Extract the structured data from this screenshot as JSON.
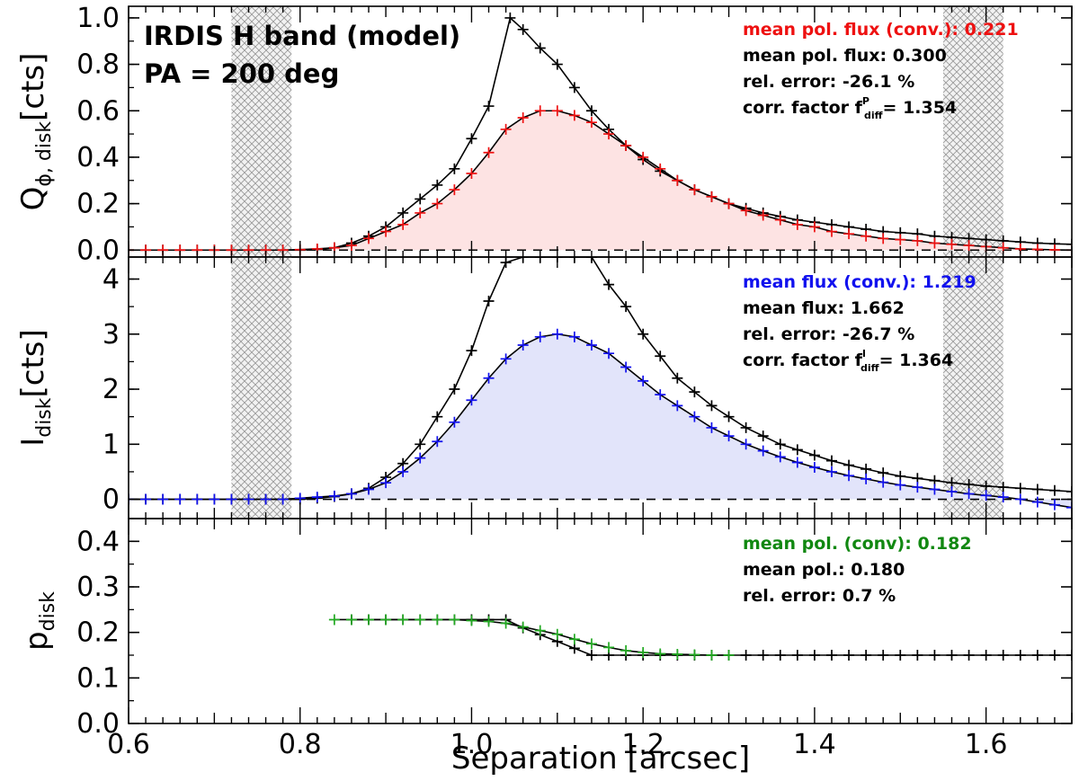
{
  "chart_data": [
    {
      "type": "line",
      "panel": "top",
      "ylabel_main": "Q",
      "ylabel_sub": "ϕ, disk",
      "ylabel_unit": "[cts]",
      "xlim": [
        0.6,
        1.7
      ],
      "ylim": [
        -0.03,
        1.05
      ],
      "yticks": [
        0.0,
        0.2,
        0.4,
        0.6,
        0.8,
        1.0
      ],
      "ytick_labels": [
        "0.0",
        "0.2",
        "0.4",
        "0.6",
        "0.8",
        "1.0"
      ],
      "zero_line": "dashed",
      "masked_regions": [
        [
          0.72,
          0.79
        ],
        [
          1.55,
          1.62
        ]
      ],
      "annotation_title": [
        "IRDIS H band (model)",
        "PA = 200 deg"
      ],
      "stats": [
        {
          "text": "mean pol. flux (conv.): 0.221",
          "color": "#ee1111"
        },
        {
          "text": "mean pol. flux: 0.300",
          "color": "#000000"
        },
        {
          "text": "rel. error: -26.1 %",
          "color": "#000000"
        },
        {
          "text_main": "corr. factor f",
          "sup": "P",
          "sub": "diff",
          "text_tail": "= 1.354",
          "color": "#000000"
        }
      ],
      "series": [
        {
          "color": "#000000",
          "marker": "plus",
          "x": [
            0.6,
            0.62,
            0.64,
            0.66,
            0.68,
            0.7,
            0.72,
            0.74,
            0.76,
            0.78,
            0.8,
            0.82,
            0.84,
            0.86,
            0.88,
            0.9,
            0.92,
            0.94,
            0.96,
            0.98,
            1.0,
            1.02,
            1.045,
            1.06,
            1.08,
            1.1,
            1.12,
            1.14,
            1.16,
            1.18,
            1.2,
            1.22,
            1.24,
            1.26,
            1.28,
            1.3,
            1.32,
            1.34,
            1.36,
            1.38,
            1.4,
            1.42,
            1.44,
            1.46,
            1.48,
            1.5,
            1.52,
            1.54,
            1.56,
            1.58,
            1.6,
            1.62,
            1.64,
            1.66,
            1.68,
            1.7
          ],
          "y": [
            0,
            0,
            0,
            0,
            0,
            0,
            0,
            0,
            0,
            0,
            0,
            0.003,
            0.01,
            0.03,
            0.06,
            0.1,
            0.16,
            0.22,
            0.28,
            0.35,
            0.48,
            0.62,
            1.0,
            0.95,
            0.87,
            0.8,
            0.7,
            0.6,
            0.52,
            0.45,
            0.39,
            0.34,
            0.3,
            0.26,
            0.23,
            0.2,
            0.18,
            0.16,
            0.145,
            0.13,
            0.12,
            0.11,
            0.1,
            0.09,
            0.08,
            0.075,
            0.07,
            0.06,
            0.055,
            0.05,
            0.045,
            0.04,
            0.035,
            0.03,
            0.027,
            0.025
          ]
        },
        {
          "color": "#ee1111",
          "marker": "plus",
          "fill": "#fde3e3",
          "x": [
            0.6,
            0.62,
            0.64,
            0.66,
            0.68,
            0.7,
            0.72,
            0.74,
            0.76,
            0.78,
            0.8,
            0.82,
            0.84,
            0.86,
            0.88,
            0.9,
            0.92,
            0.94,
            0.96,
            0.98,
            1.0,
            1.02,
            1.04,
            1.06,
            1.08,
            1.1,
            1.12,
            1.14,
            1.16,
            1.18,
            1.2,
            1.22,
            1.24,
            1.26,
            1.28,
            1.3,
            1.32,
            1.34,
            1.36,
            1.38,
            1.4,
            1.42,
            1.44,
            1.46,
            1.48,
            1.5,
            1.52,
            1.54,
            1.56,
            1.58,
            1.6,
            1.62,
            1.64,
            1.66,
            1.68,
            1.7
          ],
          "y": [
            0,
            0,
            0,
            0,
            0,
            0,
            0,
            0,
            0,
            0,
            0.002,
            0.005,
            0.01,
            0.02,
            0.05,
            0.08,
            0.11,
            0.16,
            0.2,
            0.26,
            0.33,
            0.42,
            0.52,
            0.57,
            0.6,
            0.6,
            0.58,
            0.55,
            0.5,
            0.45,
            0.4,
            0.35,
            0.3,
            0.26,
            0.23,
            0.2,
            0.17,
            0.15,
            0.13,
            0.11,
            0.1,
            0.08,
            0.07,
            0.06,
            0.05,
            0.045,
            0.04,
            0.03,
            0.025,
            0.02,
            0.015,
            0.01,
            0.005,
            0.003,
            0.001,
            0
          ]
        }
      ]
    },
    {
      "type": "line",
      "panel": "middle",
      "ylabel_main": "I",
      "ylabel_sub": "disk",
      "ylabel_unit": "[cts]",
      "xlim": [
        0.6,
        1.7
      ],
      "ylim": [
        -0.35,
        4.4
      ],
      "yticks": [
        0,
        1,
        2,
        3,
        4
      ],
      "ytick_labels": [
        "0",
        "1",
        "2",
        "3",
        "4"
      ],
      "zero_line": "dashed",
      "masked_regions": [
        [
          0.72,
          0.79
        ],
        [
          1.55,
          1.62
        ]
      ],
      "stats": [
        {
          "text": "mean flux (conv.): 1.219",
          "color": "#1111ee"
        },
        {
          "text": "mean flux: 1.662",
          "color": "#000000"
        },
        {
          "text": "rel. error: -26.7 %",
          "color": "#000000"
        },
        {
          "text_main": "corr. factor f",
          "sup": "I",
          "sub": "diff",
          "text_tail": "= 1.364",
          "color": "#000000"
        }
      ],
      "series": [
        {
          "color": "#000000",
          "marker": "plus",
          "x": [
            0.6,
            0.62,
            0.64,
            0.66,
            0.68,
            0.7,
            0.72,
            0.74,
            0.76,
            0.78,
            0.8,
            0.82,
            0.84,
            0.86,
            0.88,
            0.9,
            0.92,
            0.94,
            0.96,
            0.98,
            1.0,
            1.02,
            1.04,
            1.06,
            1.08,
            1.1,
            1.12,
            1.14,
            1.16,
            1.18,
            1.2,
            1.22,
            1.24,
            1.26,
            1.28,
            1.3,
            1.32,
            1.34,
            1.36,
            1.38,
            1.4,
            1.42,
            1.44,
            1.46,
            1.48,
            1.5,
            1.52,
            1.54,
            1.56,
            1.58,
            1.6,
            1.62,
            1.64,
            1.66,
            1.68,
            1.7
          ],
          "y": [
            0,
            0,
            0,
            0,
            0,
            0,
            0,
            0,
            0,
            0,
            0,
            0.02,
            0.05,
            0.1,
            0.2,
            0.4,
            0.65,
            1.0,
            1.5,
            2.0,
            2.7,
            3.6,
            4.3,
            4.4,
            4.4,
            4.4,
            4.4,
            4.4,
            3.9,
            3.5,
            3.0,
            2.6,
            2.2,
            1.95,
            1.7,
            1.5,
            1.3,
            1.15,
            1.0,
            0.9,
            0.8,
            0.7,
            0.62,
            0.55,
            0.48,
            0.42,
            0.38,
            0.34,
            0.3,
            0.27,
            0.24,
            0.22,
            0.2,
            0.18,
            0.16,
            0.14
          ]
        },
        {
          "color": "#1111ee",
          "marker": "plus",
          "fill": "#e2e4fa",
          "x": [
            0.6,
            0.62,
            0.64,
            0.66,
            0.68,
            0.7,
            0.72,
            0.74,
            0.76,
            0.78,
            0.8,
            0.82,
            0.84,
            0.86,
            0.88,
            0.9,
            0.92,
            0.94,
            0.96,
            0.98,
            1.0,
            1.02,
            1.04,
            1.06,
            1.08,
            1.1,
            1.12,
            1.14,
            1.16,
            1.18,
            1.2,
            1.22,
            1.24,
            1.26,
            1.28,
            1.3,
            1.32,
            1.34,
            1.36,
            1.38,
            1.4,
            1.42,
            1.44,
            1.46,
            1.48,
            1.5,
            1.52,
            1.54,
            1.56,
            1.58,
            1.6,
            1.62,
            1.64,
            1.66,
            1.68,
            1.7
          ],
          "y": [
            0,
            0,
            0,
            0,
            0,
            0,
            0,
            0,
            0,
            0,
            0.02,
            0.04,
            0.06,
            0.1,
            0.18,
            0.3,
            0.5,
            0.75,
            1.05,
            1.4,
            1.8,
            2.2,
            2.55,
            2.8,
            2.95,
            3.0,
            2.95,
            2.8,
            2.65,
            2.4,
            2.15,
            1.9,
            1.7,
            1.5,
            1.3,
            1.15,
            1.0,
            0.88,
            0.77,
            0.67,
            0.58,
            0.5,
            0.43,
            0.37,
            0.31,
            0.26,
            0.22,
            0.18,
            0.14,
            0.1,
            0.07,
            0.04,
            0.0,
            -0.05,
            -0.1,
            -0.15
          ]
        }
      ]
    },
    {
      "type": "line",
      "panel": "bottom",
      "ylabel_main": "p",
      "ylabel_sub": "disk",
      "ylabel_unit": "",
      "xlim": [
        0.6,
        1.7
      ],
      "ylim": [
        0.0,
        0.45
      ],
      "yticks": [
        0.0,
        0.1,
        0.2,
        0.3,
        0.4
      ],
      "ytick_labels": [
        "0.0",
        "0.1",
        "0.2",
        "0.3",
        "0.4"
      ],
      "xticks": [
        0.6,
        0.8,
        1.0,
        1.2,
        1.4,
        1.6
      ],
      "xtick_labels": [
        "0.6",
        "0.8",
        "1.0",
        "1.2",
        "1.4",
        "1.6"
      ],
      "xlabel": "Separation [arcsec]",
      "stats": [
        {
          "text": "mean pol. (conv): 0.182",
          "color": "#118811"
        },
        {
          "text": "mean pol.: 0.180",
          "color": "#000000"
        },
        {
          "text": "rel. error:   0.7 %",
          "color": "#000000"
        }
      ],
      "series": [
        {
          "color": "#000000",
          "marker": "plus",
          "x": [
            0.86,
            0.88,
            0.9,
            0.92,
            0.94,
            0.96,
            0.98,
            1.0,
            1.02,
            1.04,
            1.06,
            1.08,
            1.1,
            1.12,
            1.14,
            1.16,
            1.18,
            1.2,
            1.22,
            1.24,
            1.26,
            1.28,
            1.3,
            1.32,
            1.34,
            1.36,
            1.38,
            1.4,
            1.42,
            1.44,
            1.46,
            1.48,
            1.5,
            1.52,
            1.54,
            1.56,
            1.58,
            1.6,
            1.62,
            1.64,
            1.66,
            1.68,
            1.7
          ],
          "y": [
            0.228,
            0.228,
            0.228,
            0.228,
            0.228,
            0.228,
            0.228,
            0.228,
            0.228,
            0.228,
            0.21,
            0.195,
            0.18,
            0.165,
            0.15,
            0.15,
            0.15,
            0.15,
            0.15,
            0.15,
            0.15,
            0.15,
            0.15,
            0.15,
            0.15,
            0.15,
            0.15,
            0.15,
            0.15,
            0.15,
            0.15,
            0.15,
            0.15,
            0.15,
            0.15,
            0.15,
            0.15,
            0.15,
            0.15,
            0.15,
            0.15,
            0.15,
            0.15
          ]
        },
        {
          "color": "#22aa22",
          "marker": "plus",
          "x": [
            0.84,
            0.86,
            0.88,
            0.9,
            0.92,
            0.94,
            0.96,
            0.98,
            1.0,
            1.02,
            1.04,
            1.06,
            1.08,
            1.1,
            1.12,
            1.14,
            1.16,
            1.18,
            1.2,
            1.22,
            1.24,
            1.26,
            1.28,
            1.3
          ],
          "y": [
            0.228,
            0.228,
            0.228,
            0.228,
            0.228,
            0.228,
            0.228,
            0.228,
            0.226,
            0.224,
            0.22,
            0.212,
            0.204,
            0.196,
            0.185,
            0.175,
            0.167,
            0.16,
            0.156,
            0.153,
            0.152,
            0.151,
            0.15,
            0.15
          ]
        }
      ]
    }
  ]
}
